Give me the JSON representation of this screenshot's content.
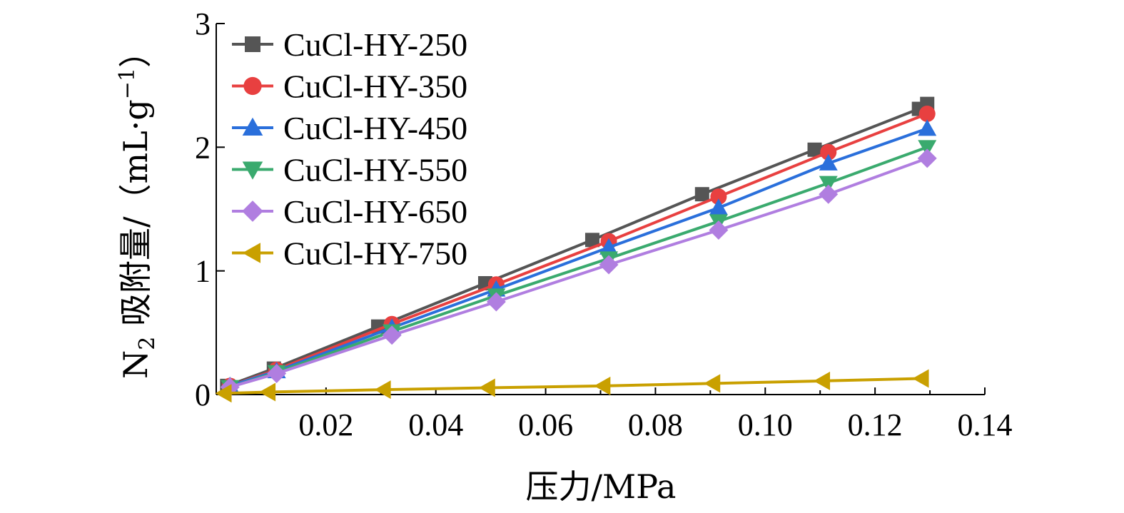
{
  "chart_data": {
    "type": "line",
    "xlabel": "压力/MPa",
    "ylabel_main": "N",
    "ylabel_sub": "2",
    "ylabel_rest": " 吸附量/（mL·g",
    "ylabel_sup": "−1",
    "ylabel_close": "）",
    "xlim": [
      0,
      0.14
    ],
    "ylim": [
      0,
      3
    ],
    "x_ticks": [
      0.02,
      0.04,
      0.06,
      0.08,
      0.1,
      0.12,
      0.14
    ],
    "x_tick_labels": [
      "0.02",
      "0.04",
      "0.06",
      "0.08",
      "0.10",
      "0.12",
      "0.14"
    ],
    "y_ticks": [
      0,
      1,
      2,
      3
    ],
    "y_tick_labels": [
      "0",
      "1",
      "2",
      "3"
    ],
    "grid": false,
    "legend_position": "top-left",
    "series": [
      {
        "name": "CuCl-HY-250",
        "color": "#555555",
        "marker": "square",
        "x": [
          0.002,
          0.0105,
          0.0295,
          0.049,
          0.0685,
          0.0885,
          0.109,
          0.128,
          0.1295
        ],
        "y": [
          0.07,
          0.21,
          0.55,
          0.9,
          1.25,
          1.62,
          1.98,
          2.31,
          2.35
        ]
      },
      {
        "name": "CuCl-HY-350",
        "color": "#e84040",
        "marker": "circle",
        "x": [
          0.0025,
          0.011,
          0.032,
          0.051,
          0.0715,
          0.0915,
          0.1115,
          0.1295
        ],
        "y": [
          0.07,
          0.2,
          0.57,
          0.89,
          1.24,
          1.6,
          1.96,
          2.27
        ]
      },
      {
        "name": "CuCl-HY-450",
        "color": "#2a6fdb",
        "marker": "triangle-up",
        "x": [
          0.0025,
          0.011,
          0.032,
          0.051,
          0.0715,
          0.0915,
          0.1115,
          0.1295
        ],
        "y": [
          0.07,
          0.19,
          0.54,
          0.85,
          1.19,
          1.51,
          1.87,
          2.15
        ]
      },
      {
        "name": "CuCl-HY-550",
        "color": "#3aaa6e",
        "marker": "triangle-down",
        "x": [
          0.0025,
          0.011,
          0.032,
          0.051,
          0.0715,
          0.0915,
          0.1115,
          0.1295
        ],
        "y": [
          0.06,
          0.18,
          0.51,
          0.8,
          1.1,
          1.4,
          1.71,
          2.0
        ]
      },
      {
        "name": "CuCl-HY-650",
        "color": "#b07ee0",
        "marker": "diamond",
        "x": [
          0.0025,
          0.011,
          0.032,
          0.051,
          0.0715,
          0.0915,
          0.1115,
          0.1295
        ],
        "y": [
          0.06,
          0.17,
          0.48,
          0.75,
          1.05,
          1.33,
          1.62,
          1.91
        ]
      },
      {
        "name": "CuCl-HY-750",
        "color": "#c9a000",
        "marker": "triangle-left",
        "x": [
          0.0015,
          0.0095,
          0.0305,
          0.0495,
          0.0705,
          0.0905,
          0.1105,
          0.1285
        ],
        "y": [
          0.01,
          0.02,
          0.04,
          0.055,
          0.07,
          0.09,
          0.11,
          0.13
        ]
      }
    ]
  }
}
